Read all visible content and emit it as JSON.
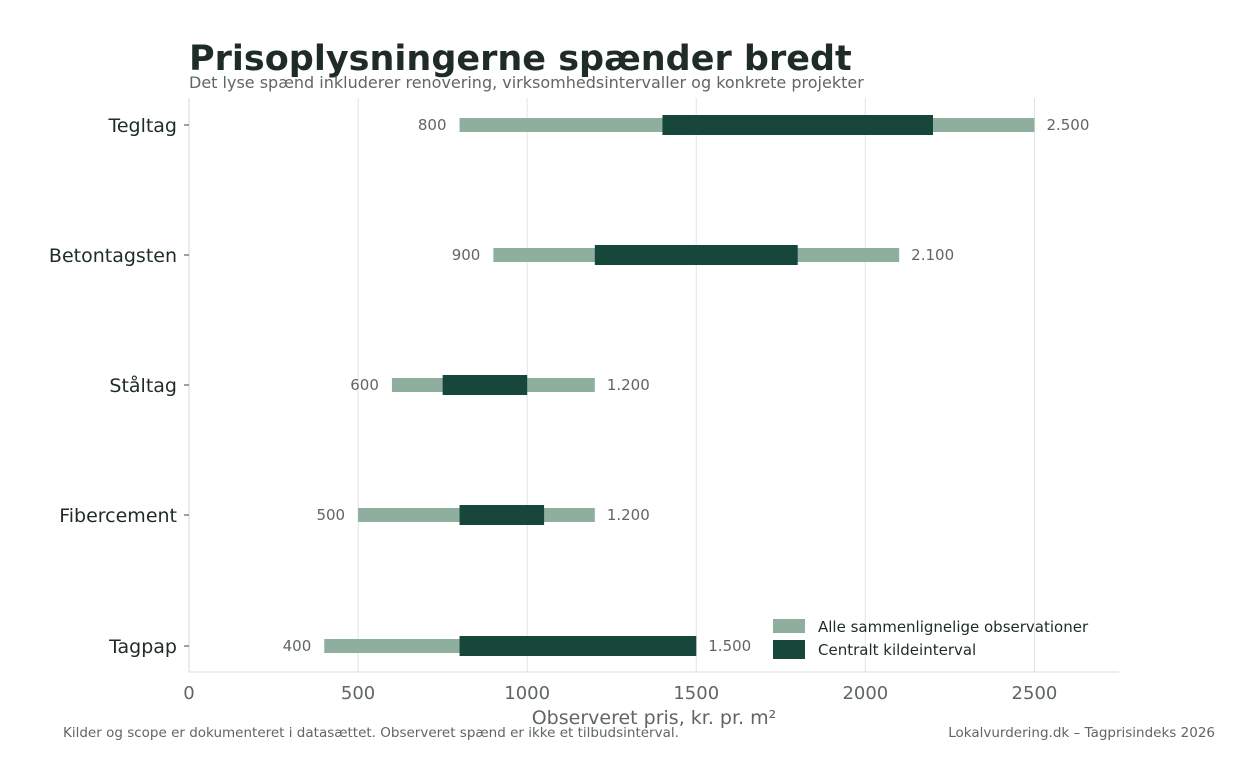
{
  "chart_data": {
    "type": "bar",
    "orientation": "horizontal-range",
    "title": "Prisoplysningerne spænder bredt",
    "subtitle": "Det lyse spænd inkluderer renovering, virksomhedsintervaller og konkrete projekter",
    "xlabel": "Observeret pris, kr. pr. m²",
    "xlim": [
      0,
      2750
    ],
    "xticks": [
      0,
      500,
      1000,
      1500,
      2000,
      2500
    ],
    "grid": true,
    "legend_position": "bottom-right",
    "categories": [
      "Tegltag",
      "Betontagsten",
      "Ståltag",
      "Fibercement",
      "Tagpap"
    ],
    "series": [
      {
        "name": "Alle sammenlignelige observationer",
        "color": "#8fae9e",
        "ranges": [
          [
            800,
            2500
          ],
          [
            900,
            2100
          ],
          [
            600,
            1200
          ],
          [
            500,
            1200
          ],
          [
            400,
            1500
          ]
        ]
      },
      {
        "name": "Centralt kildeinterval",
        "color": "#17473b",
        "ranges": [
          [
            1400,
            2200
          ],
          [
            1200,
            1800
          ],
          [
            750,
            1000
          ],
          [
            800,
            1050
          ],
          [
            800,
            1500
          ]
        ]
      }
    ],
    "min_labels": [
      "800",
      "900",
      "600",
      "500",
      "400"
    ],
    "max_labels": [
      "2.500",
      "2.100",
      "1.200",
      "1.200",
      "1.500"
    ]
  },
  "footer": {
    "left": "Kilder og scope er dokumenteret i datasættet. Observeret spænd er ikke et tilbudsinterval.",
    "right": "Lokalvurdering.dk – Tagprisindeks 2026"
  },
  "colors": {
    "title": "#1f2b27",
    "muted": "#5f6663",
    "grid": "#e3e3e3",
    "axis": "#d8d8d8"
  }
}
